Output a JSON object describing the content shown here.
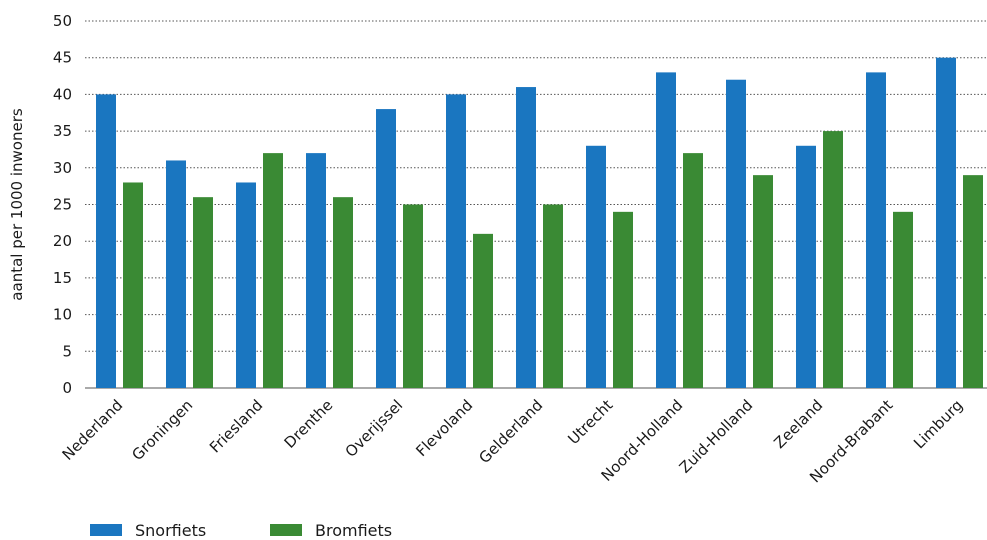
{
  "chart_data": {
    "type": "bar",
    "title": "",
    "xlabel": "",
    "ylabel": "aantal per 1000 inwoners",
    "ylim": [
      0,
      50
    ],
    "yticks": [
      0,
      5,
      10,
      15,
      20,
      25,
      30,
      35,
      40,
      45,
      50
    ],
    "grid": true,
    "legend_position": "bottom-left",
    "categories": [
      "Nederland",
      "Groningen",
      "Friesland",
      "Drenthe",
      "Overijssel",
      "Flevoland",
      "Gelderland",
      "Utrecht",
      "Noord-Holland",
      "Zuid-Holland",
      "Zeeland",
      "Noord-Brabant",
      "Limburg"
    ],
    "series": [
      {
        "name": "Snorfiets",
        "color": "#1a76c0",
        "values": [
          40,
          31,
          28,
          32,
          38,
          40,
          41,
          33,
          43,
          42,
          33,
          43,
          45
        ]
      },
      {
        "name": "Bromfiets",
        "color": "#3a8a34",
        "values": [
          28,
          26,
          32,
          26,
          25,
          21,
          25,
          24,
          32,
          29,
          35,
          24,
          29
        ]
      }
    ]
  }
}
